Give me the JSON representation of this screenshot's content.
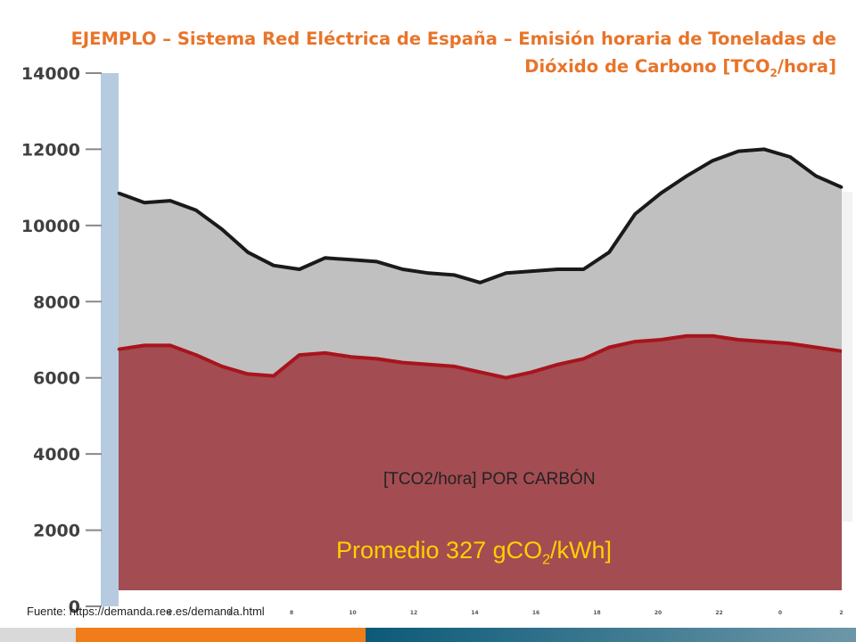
{
  "title": {
    "line1": "EJEMPLO – Sistema Red Eléctrica de España – Emisión horaria de Toneladas de",
    "line2_pre": "Dióxido de Carbono [TCO",
    "line2_sub": "2",
    "line2_post": "/hora]"
  },
  "annotations": {
    "coal_label": "[TCO2/hora] POR CARBÓN",
    "average_pre": "Promedio 327 gCO",
    "average_sub": "2",
    "average_post": "/kWh]"
  },
  "source": "Fuente: https://demanda.ree.es/demanda.html",
  "colors": {
    "title": "#e8742a",
    "total_fill": "#c0c0c0",
    "total_line": "#1a1a1a",
    "coal_fill": "#a34c52",
    "coal_line": "#a8141d",
    "average_text": "#ffd000",
    "axis_band": "#b6cbe0"
  },
  "chart_data": {
    "type": "area",
    "ylim": [
      0,
      14000
    ],
    "yticks": [
      "0",
      "2000",
      "4000",
      "6000",
      "8000",
      "10000",
      "12000",
      "14000"
    ],
    "xticks": [
      "4",
      "6",
      "8",
      "10",
      "12",
      "14",
      "16",
      "18",
      "20",
      "22",
      "0",
      "2"
    ],
    "xlabel": "",
    "ylabel": "",
    "series": [
      {
        "name": "",
        "role": "total",
        "x": [
          0,
          1,
          2,
          3,
          4,
          5,
          6,
          7,
          8,
          9,
          10,
          11,
          12,
          13,
          14,
          15,
          16,
          17,
          18,
          19,
          20,
          21,
          22,
          23,
          24,
          25,
          26,
          27,
          28
        ],
        "values": [
          10850,
          10600,
          10650,
          10400,
          9900,
          9300,
          8950,
          8850,
          9150,
          9100,
          9050,
          8850,
          8750,
          8700,
          8500,
          8750,
          8800,
          8850,
          8850,
          9300,
          10300,
          10850,
          11300,
          11700,
          11950,
          12000,
          11800,
          11300,
          11000
        ]
      },
      {
        "name": "[TCO2/hora] POR CARBÓN",
        "role": "coal",
        "x": [
          0,
          1,
          2,
          3,
          4,
          5,
          6,
          7,
          8,
          9,
          10,
          11,
          12,
          13,
          14,
          15,
          16,
          17,
          18,
          19,
          20,
          21,
          22,
          23,
          24,
          25,
          26,
          27,
          28
        ],
        "values": [
          6750,
          6850,
          6850,
          6600,
          6300,
          6100,
          6050,
          6600,
          6650,
          6550,
          6500,
          6400,
          6350,
          6300,
          6150,
          6000,
          6150,
          6350,
          6500,
          6800,
          6950,
          7000,
          7100,
          7100,
          7000,
          6950,
          6900,
          6800,
          6700
        ]
      }
    ]
  }
}
